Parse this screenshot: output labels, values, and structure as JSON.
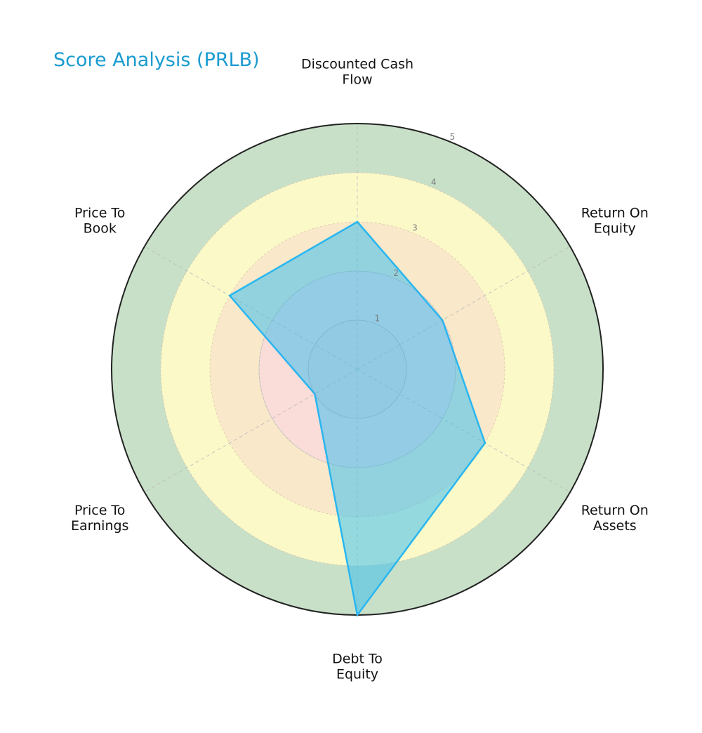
{
  "title": "Score Analysis (PRLB)",
  "colors": {
    "title": "#1a9bd0",
    "polygon_stroke": "#29b6f0",
    "polygon_fill": "#3ec0ee",
    "bands": [
      "#f8d4d4",
      "#fadcd8",
      "#f9e8c9",
      "#fcf9c9",
      "#c8e0c8"
    ]
  },
  "chart_data": {
    "type": "radar",
    "title": "Score Analysis (PRLB)",
    "categories": [
      "Discounted Cash Flow",
      "Return On Equity",
      "Return On Assets",
      "Debt To Equity",
      "Price To Earnings",
      "Price To Book"
    ],
    "category_lines": [
      [
        "Discounted Cash",
        "Flow"
      ],
      [
        "Return On",
        "Equity"
      ],
      [
        "Return On",
        "Assets"
      ],
      [
        "Debt To",
        "Equity"
      ],
      [
        "Price To",
        "Earnings"
      ],
      [
        "Price To",
        "Book"
      ]
    ],
    "values": [
      3,
      2,
      3,
      5,
      1,
      3
    ],
    "rlim": [
      0,
      5
    ],
    "rticks": [
      "1",
      "2",
      "3",
      "4",
      "5"
    ],
    "grid": true
  }
}
